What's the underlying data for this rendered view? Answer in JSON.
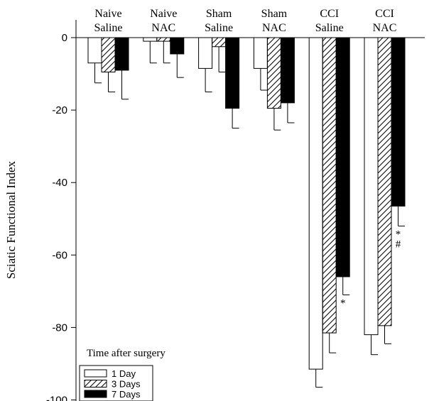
{
  "chart_data": {
    "type": "bar",
    "ylabel": "Sciatic Functional Index",
    "ylim": [
      -100,
      0
    ],
    "yticks": [
      0,
      -20,
      -40,
      -60,
      -80,
      -100
    ],
    "categories": [
      [
        "Naive",
        "Saline"
      ],
      [
        "Naive",
        "NAC"
      ],
      [
        "Sham",
        "Saline"
      ],
      [
        "Sham",
        "NAC"
      ],
      [
        "CCI",
        "Saline"
      ],
      [
        "CCI",
        "NAC"
      ]
    ],
    "series": [
      {
        "name": "1 Day",
        "fill": "white",
        "values": [
          -7,
          -1,
          -8.5,
          -8.5,
          -91.5,
          -82
        ],
        "errors": [
          5.5,
          6,
          6.5,
          6,
          5,
          5.5
        ]
      },
      {
        "name": "3 Days",
        "fill": "hatched",
        "values": [
          -9.5,
          -1,
          -2.5,
          -19.5,
          -81.5,
          -79.5
        ],
        "errors": [
          5.5,
          6,
          7,
          6,
          5.5,
          5
        ]
      },
      {
        "name": "7 Days",
        "fill": "black",
        "values": [
          -9,
          -4.5,
          -19.5,
          -18,
          -66,
          -46.5
        ],
        "errors": [
          8,
          6.5,
          5.5,
          5.5,
          5,
          5.5
        ]
      }
    ],
    "annotations": [
      {
        "category": 4,
        "series": 2,
        "text": "*"
      },
      {
        "category": 5,
        "series": 2,
        "text": "*"
      },
      {
        "category": 5,
        "series": 2,
        "text": "#"
      }
    ],
    "legend": {
      "title": "Time after surgery",
      "position": "bottom-left"
    },
    "colors": {
      "ink": "#000000",
      "open_fill": "#ffffff",
      "solid_fill": "#000000"
    }
  }
}
